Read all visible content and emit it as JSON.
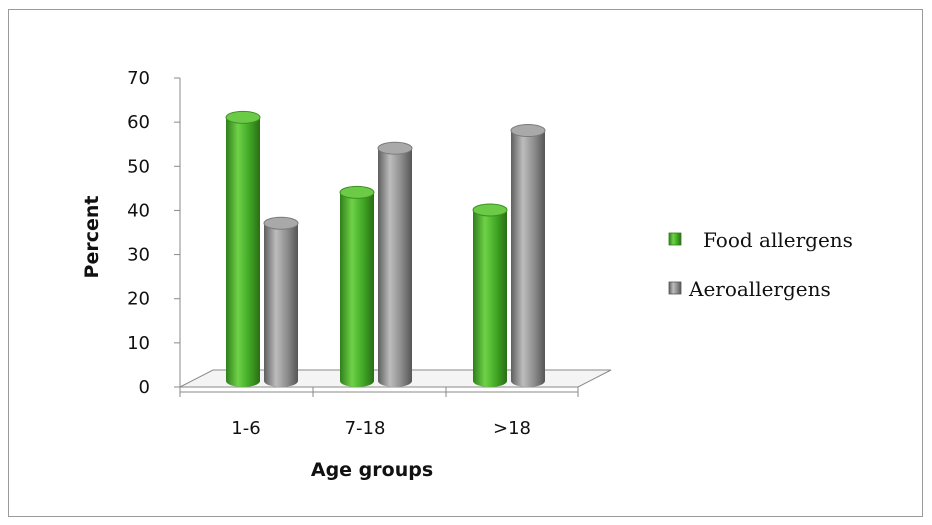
{
  "chart_data": {
    "type": "bar",
    "title": "",
    "xlabel": "Age groups",
    "ylabel": "Percent",
    "categories": [
      "1-6",
      "7-18",
      ">18"
    ],
    "series": [
      {
        "name": "Food allergens",
        "values": [
          62,
          45,
          41
        ],
        "color": "#44b02a"
      },
      {
        "name": "Aeroallergens",
        "values": [
          38,
          55,
          59
        ],
        "color": "#8c8c8c"
      }
    ],
    "ylim": [
      0,
      70
    ],
    "yticks": [
      0,
      10,
      20,
      30,
      40,
      50,
      60,
      70
    ],
    "grid": false,
    "legend_position": "right",
    "style": "3d-cylinder"
  }
}
